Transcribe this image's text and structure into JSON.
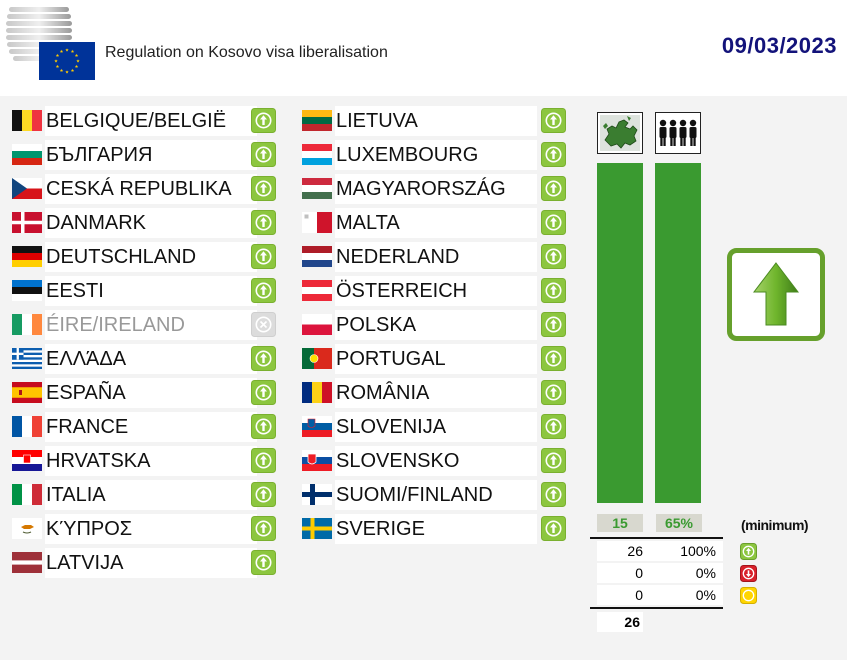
{
  "header": {
    "title": "Regulation on Kosovo visa liberalisation",
    "date": "09/03/2023"
  },
  "countries": [
    {
      "name": "BELGIQUE/BELGIË",
      "vote": "yes",
      "flag": "belgium-flag-icon"
    },
    {
      "name": "БЪЛГАРИЯ",
      "vote": "yes",
      "flag": "bulgaria-flag-icon"
    },
    {
      "name": "CESKÁ REPUBLIKA",
      "vote": "yes",
      "flag": "czechia-flag-icon"
    },
    {
      "name": "DANMARK",
      "vote": "yes",
      "flag": "denmark-flag-icon"
    },
    {
      "name": "DEUTSCHLAND",
      "vote": "yes",
      "flag": "germany-flag-icon"
    },
    {
      "name": "EESTI",
      "vote": "yes",
      "flag": "estonia-flag-icon"
    },
    {
      "name": "ÉIRE/IRELAND",
      "vote": "absent",
      "flag": "ireland-flag-icon"
    },
    {
      "name": "ΕΛΛΆΔΑ",
      "vote": "yes",
      "flag": "greece-flag-icon"
    },
    {
      "name": "ESPAÑA",
      "vote": "yes",
      "flag": "spain-flag-icon"
    },
    {
      "name": "FRANCE",
      "vote": "yes",
      "flag": "france-flag-icon"
    },
    {
      "name": "HRVATSKA",
      "vote": "yes",
      "flag": "croatia-flag-icon"
    },
    {
      "name": "ITALIA",
      "vote": "yes",
      "flag": "italy-flag-icon"
    },
    {
      "name": "ΚΎΠΡΟΣ",
      "vote": "yes",
      "flag": "cyprus-flag-icon"
    },
    {
      "name": "LATVIJA",
      "vote": "yes",
      "flag": "latvia-flag-icon"
    },
    {
      "name": "LIETUVA",
      "vote": "yes",
      "flag": "lithuania-flag-icon"
    },
    {
      "name": "LUXEMBOURG",
      "vote": "yes",
      "flag": "luxembourg-flag-icon"
    },
    {
      "name": "MAGYARORSZÁG",
      "vote": "yes",
      "flag": "hungary-flag-icon"
    },
    {
      "name": "MALTA",
      "vote": "yes",
      "flag": "malta-flag-icon"
    },
    {
      "name": "NEDERLAND",
      "vote": "yes",
      "flag": "netherlands-flag-icon"
    },
    {
      "name": "ÖSTERREICH",
      "vote": "yes",
      "flag": "austria-flag-icon"
    },
    {
      "name": "POLSKA",
      "vote": "yes",
      "flag": "poland-flag-icon"
    },
    {
      "name": "PORTUGAL",
      "vote": "yes",
      "flag": "portugal-flag-icon"
    },
    {
      "name": "ROMÂNIA",
      "vote": "yes",
      "flag": "romania-flag-icon"
    },
    {
      "name": "SLOVENIJA",
      "vote": "yes",
      "flag": "slovenia-flag-icon"
    },
    {
      "name": "SLOVENSKO",
      "vote": "yes",
      "flag": "slovakia-flag-icon"
    },
    {
      "name": "SUOMI/FINLAND",
      "vote": "yes",
      "flag": "finland-flag-icon"
    },
    {
      "name": "SVERIGE",
      "vote": "yes",
      "flag": "sweden-flag-icon"
    }
  ],
  "majority": {
    "countries_threshold": "15",
    "population_threshold": "65%",
    "minimum_label": "(minimum)",
    "countries_fill_fraction": 1.0,
    "population_fill_fraction": 1.0,
    "result": "adopted",
    "result_icon": "up-arrow-icon"
  },
  "tally": {
    "yes": {
      "count": "26",
      "pct": "100%",
      "icon": "vote-yes-icon"
    },
    "no": {
      "count": "0",
      "pct": "0%",
      "icon": "vote-no-icon"
    },
    "abstain": {
      "count": "0",
      "pct": "0%",
      "icon": "vote-abstain-icon"
    },
    "total": "26"
  },
  "colors": {
    "vote_green": "#8cc63f",
    "bar_green": "#3a9a30",
    "arrow_green": "#66a02c",
    "date_blue": "#13137a",
    "eu_blue": "#003399",
    "eu_yellow": "#ffcc00",
    "no_red": "#d9202a",
    "abstain_yellow": "#ffd500",
    "absent_grey": "#dcdcdc"
  }
}
